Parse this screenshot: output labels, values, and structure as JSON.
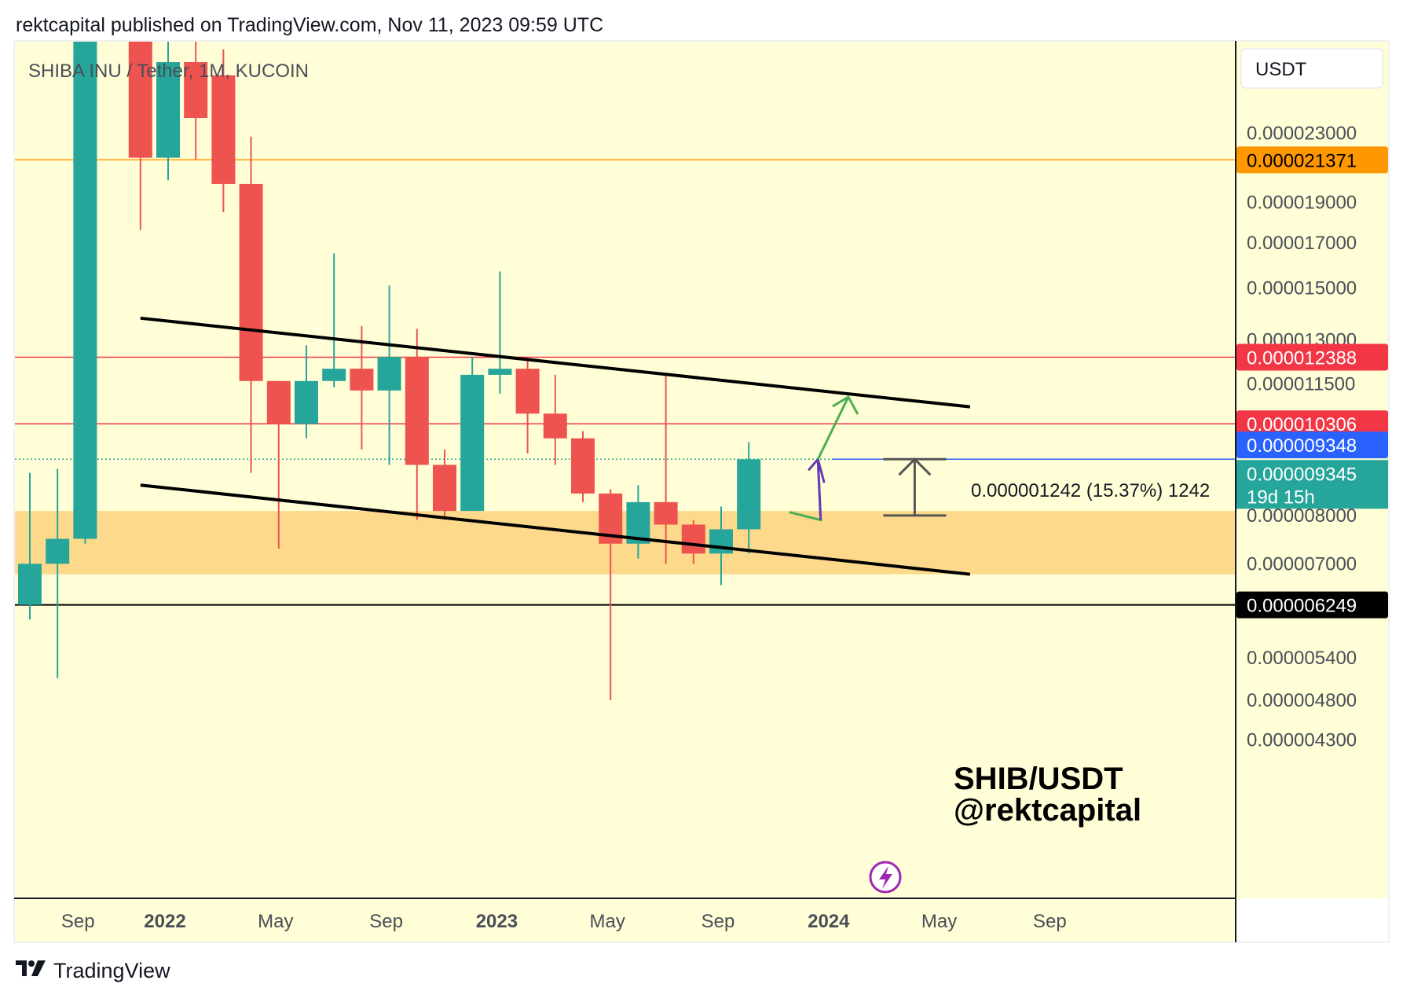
{
  "header": {
    "publisher": "rektcapital published on TradingView.com, Nov 11, 2023 09:59 UTC"
  },
  "footer": {
    "brand": "TradingView"
  },
  "chart": {
    "symbol_title": "SHIBA INU / Tether, 1M, KUCOIN",
    "currency_button": "USDT",
    "watermark_line1": "SHIB/USDT",
    "watermark_line2": "@rektcapital",
    "measure_label": "0.000001242 (15.37%) 1242",
    "countdown": "19d 15h",
    "colors": {
      "background": "#fffed6",
      "up": "#26a69a",
      "down": "#ef5350",
      "support_zone": "#fdd98c",
      "resistance": "#f23645",
      "arrow_green": "#4caf50",
      "arrow_purple": "#673ab7"
    }
  },
  "chart_data": {
    "type": "candlestick",
    "title": "SHIBA INU / Tether, 1M, KUCOIN",
    "x_ticks": [
      {
        "label": "Sep",
        "bold": false
      },
      {
        "label": "2022",
        "bold": true
      },
      {
        "label": "May",
        "bold": false
      },
      {
        "label": "Sep",
        "bold": false
      },
      {
        "label": "2023",
        "bold": true
      },
      {
        "label": "May",
        "bold": false
      },
      {
        "label": "Sep",
        "bold": false
      },
      {
        "label": "2024",
        "bold": true
      },
      {
        "label": "May",
        "bold": false
      },
      {
        "label": "Sep",
        "bold": false
      }
    ],
    "y_ticks": [
      "0.000023000",
      "0.000019000",
      "0.000017000",
      "0.000015000",
      "0.000013000",
      "0.000011500",
      "0.000008000",
      "0.000007000",
      "0.000005400",
      "0.000004800",
      "0.000004300"
    ],
    "price_labels": [
      {
        "value": "0.000021371",
        "style": "orange"
      },
      {
        "value": "0.000012388",
        "style": "red"
      },
      {
        "value": "0.000010306",
        "style": "red"
      },
      {
        "value": "0.000009348",
        "style": "blue"
      },
      {
        "value": "0.000009345",
        "style": "teal"
      },
      {
        "value": "0.000006249",
        "style": "black"
      }
    ],
    "candles": [
      {
        "date": "2021-08",
        "open": 6.249e-06,
        "high": 9e-06,
        "low": 6e-06,
        "close": 7e-06
      },
      {
        "date": "2021-09",
        "open": 7e-06,
        "high": 9.1e-06,
        "low": 5.1e-06,
        "close": 7.5e-06
      },
      {
        "date": "2021-10",
        "open": 7.5e-06,
        "high": 8.8e-05,
        "low": 7.4e-06,
        "close": 5.5e-05
      },
      {
        "date": "2021-12",
        "open": 3e-05,
        "high": 4.2e-05,
        "low": 1.76e-05,
        "close": 2.15e-05
      },
      {
        "date": "2022-01",
        "open": 2.15e-05,
        "high": 3.3e-05,
        "low": 2.02e-05,
        "close": 2.8e-05
      },
      {
        "date": "2022-02",
        "open": 2.8e-05,
        "high": 3e-05,
        "low": 2.14e-05,
        "close": 2.4e-05
      },
      {
        "date": "2022-03",
        "open": 2.7e-05,
        "high": 2.9e-05,
        "low": 1.85e-05,
        "close": 2e-05
      },
      {
        "date": "2022-04",
        "open": 2e-05,
        "high": 2.28e-05,
        "low": 9e-06,
        "close": 1.16e-05
      },
      {
        "date": "2022-05",
        "open": 1.16e-05,
        "high": 1.16e-05,
        "low": 7.3e-06,
        "close": 1.03e-05
      },
      {
        "date": "2022-06",
        "open": 1.03e-05,
        "high": 1.28e-05,
        "low": 9.9e-06,
        "close": 1.16e-05
      },
      {
        "date": "2022-07",
        "open": 1.16e-05,
        "high": 1.65e-05,
        "low": 1.14e-05,
        "close": 1.2e-05
      },
      {
        "date": "2022-08",
        "open": 1.2e-05,
        "high": 1.35e-05,
        "low": 9.6e-06,
        "close": 1.13e-05
      },
      {
        "date": "2022-09",
        "open": 1.13e-05,
        "high": 1.51e-05,
        "low": 9.2e-06,
        "close": 1.24e-05
      },
      {
        "date": "2022-10",
        "open": 1.24e-05,
        "high": 1.34e-05,
        "low": 7.9e-06,
        "close": 9.2e-06
      },
      {
        "date": "2022-11",
        "open": 9.2e-06,
        "high": 9.6e-06,
        "low": 7.9e-06,
        "close": 8.1e-06
      },
      {
        "date": "2022-12",
        "open": 8.1e-06,
        "high": 1.24e-05,
        "low": 8.1e-06,
        "close": 1.18e-05
      },
      {
        "date": "2023-01",
        "open": 1.18e-05,
        "high": 1.57e-05,
        "low": 1.12e-05,
        "close": 1.2e-05
      },
      {
        "date": "2023-02",
        "open": 1.2e-05,
        "high": 1.24e-05,
        "low": 9.5e-06,
        "close": 1.06e-05
      },
      {
        "date": "2023-03",
        "open": 1.06e-05,
        "high": 1.18e-05,
        "low": 9.2e-06,
        "close": 9.9e-06
      },
      {
        "date": "2023-04",
        "open": 9.9e-06,
        "high": 1.01e-05,
        "low": 8.3e-06,
        "close": 8.5e-06
      },
      {
        "date": "2023-05",
        "open": 8.5e-06,
        "high": 8.6e-06,
        "low": 4.8e-06,
        "close": 7.4e-06
      },
      {
        "date": "2023-06",
        "open": 7.4e-06,
        "high": 8.7e-06,
        "low": 7.1e-06,
        "close": 8.3e-06
      },
      {
        "date": "2023-07",
        "open": 8.3e-06,
        "high": 1.18e-05,
        "low": 7e-06,
        "close": 7.8e-06
      },
      {
        "date": "2023-08",
        "open": 7.8e-06,
        "high": 7.9e-06,
        "low": 7e-06,
        "close": 7.2e-06
      },
      {
        "date": "2023-09",
        "open": 7.2e-06,
        "high": 8.2e-06,
        "low": 6.6e-06,
        "close": 7.7e-06
      },
      {
        "date": "2023-10",
        "open": 7.7e-06,
        "high": 9.8e-06,
        "low": 7.2e-06,
        "close": 9.345e-06
      }
    ],
    "channel": {
      "upper": {
        "from": {
          "date": "2021-12",
          "price": 1.38e-05
        },
        "to": {
          "date": "2024-06",
          "price": 1.08e-05
        }
      },
      "lower": {
        "from": {
          "date": "2021-12",
          "price": 8.7e-06
        },
        "to": {
          "date": "2024-06",
          "price": 6.8e-06
        }
      }
    },
    "support_zone": {
      "from": 6.8e-06,
      "to": 8.1e-06
    },
    "horizontal_lines": [
      2.1371e-05,
      1.2388e-05,
      1.0306e-05,
      6.249e-06
    ]
  }
}
